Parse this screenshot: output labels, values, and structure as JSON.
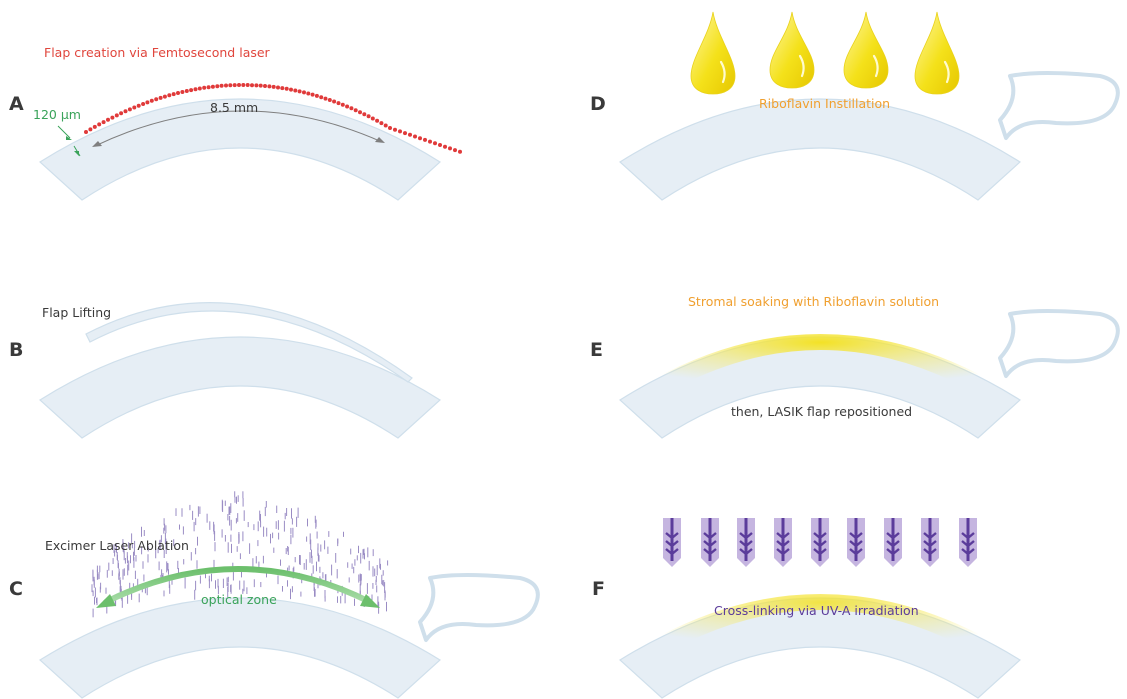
{
  "panels": {
    "a": {
      "letter": "A",
      "caption": "Flap creation via Femtosecond laser",
      "thickness_label": "120 μm",
      "diameter_label": "8.5 mm"
    },
    "b": {
      "letter": "B",
      "caption": "Flap Lifting"
    },
    "c": {
      "letter": "C",
      "caption": "Excimer Laser Ablation",
      "zone_label": "optical zone"
    },
    "d": {
      "letter": "D",
      "caption": "Riboflavin Instillation"
    },
    "e": {
      "letter": "E",
      "caption": "Stromal soaking with Riboflavin solution",
      "caption2": "then, LASIK flap repositioned"
    },
    "f": {
      "letter": "F",
      "caption": "Cross-linking via UV-A irradiation"
    }
  },
  "colors": {
    "cornea_fill": "#e6eef5",
    "cornea_stroke": "#cfdfeb",
    "laser_dots": "#e03a3a",
    "femto_caption": "#e0463d",
    "thickness": "#3aa35a",
    "dim_arrow": "#7f7f7f",
    "ablation_marks": "#9a8cc4",
    "optical_zone": "#7cc47c",
    "riboflavin": "#f4e11a",
    "riboflavin_caption": "#f0a030",
    "uv": "#5b3c9b",
    "uv_halo": "#c5b5e0",
    "text_dark": "#3a3a3a"
  },
  "icons": [
    "riboflavin-drop-icon",
    "uv-arrow-icon"
  ]
}
